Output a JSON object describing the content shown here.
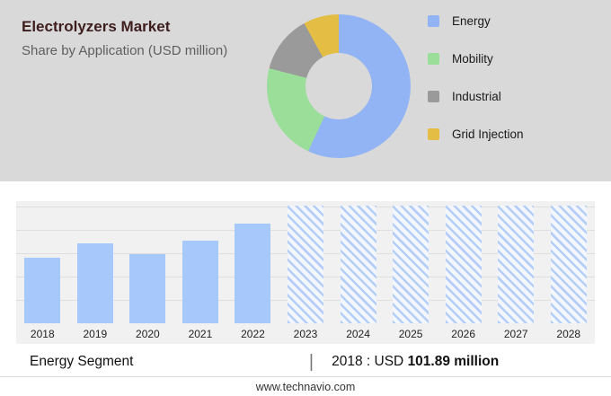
{
  "header": {
    "title": "Electrolyzers Market",
    "subtitle": "Share by Application (USD million)"
  },
  "legend": [
    {
      "label": "Energy",
      "color": "#92b4f4"
    },
    {
      "label": "Mobility",
      "color": "#9ade9a"
    },
    {
      "label": "Industrial",
      "color": "#9a9a9a"
    },
    {
      "label": "Grid Injection",
      "color": "#e4bd45"
    }
  ],
  "chart_data": [
    {
      "type": "pie",
      "title": "Share by Application (USD million)",
      "labels": [
        "Energy",
        "Mobility",
        "Industrial",
        "Grid Injection"
      ],
      "values_pct": [
        57,
        22,
        13,
        8
      ],
      "colors": [
        "#92b4f4",
        "#9ade9a",
        "#9a9a9a",
        "#e4bd45"
      ],
      "donut": true,
      "legend_position": "right"
    },
    {
      "type": "bar",
      "title": "Energy Segment (USD million)",
      "categories": [
        "2018",
        "2019",
        "2020",
        "2021",
        "2022",
        "2023",
        "2024",
        "2025",
        "2026",
        "2027",
        "2028"
      ],
      "values": [
        101.89,
        125,
        107,
        129,
        155,
        null,
        null,
        null,
        null,
        null,
        null
      ],
      "forecast_years": [
        "2023",
        "2024",
        "2025",
        "2026",
        "2027",
        "2028"
      ],
      "bar_color": "#a6c8fa",
      "xlabel": "",
      "ylabel": "",
      "ylim": [
        0,
        190
      ],
      "grid": true,
      "note": "2018 value labeled: USD 101.89 million; 2023-2028 shown as hatched forecast placeholders"
    }
  ],
  "footer": {
    "segment_label": "Energy Segment",
    "separator": "|",
    "year_label": "2018 : USD",
    "value_bold": "101.89 million",
    "website": "www.technavio.com"
  }
}
